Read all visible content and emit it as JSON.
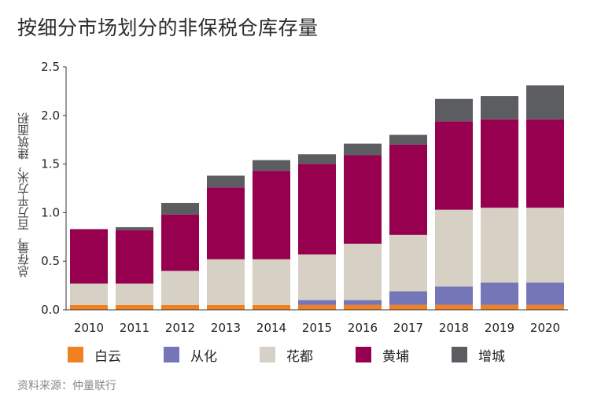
{
  "title": "按细分市场划分的非保税仓库存量",
  "source": "资料来源：仲量联行",
  "chart_data": {
    "type": "bar",
    "stacked": true,
    "ylabel": "总存量，百万平方米，建筑面积",
    "ylim": [
      0,
      2.5
    ],
    "yticks": [
      "0.0",
      "0.5",
      "1.0",
      "1.5",
      "2.0",
      "2.5"
    ],
    "grid": false,
    "legend_position": "bottom",
    "categories": [
      "2010",
      "2011",
      "2012",
      "2013",
      "2014",
      "2015",
      "2016",
      "2017",
      "2018",
      "2019",
      "2020"
    ],
    "series": [
      {
        "name": "白云",
        "color": "#f08020",
        "values": [
          0.05,
          0.05,
          0.05,
          0.05,
          0.05,
          0.05,
          0.05,
          0.05,
          0.05,
          0.05,
          0.05
        ]
      },
      {
        "name": "从化",
        "color": "#7476b8",
        "values": [
          0.0,
          0.0,
          0.0,
          0.0,
          0.0,
          0.05,
          0.05,
          0.14,
          0.19,
          0.23,
          0.23
        ]
      },
      {
        "name": "花都",
        "color": "#d6d1c4",
        "values": [
          0.22,
          0.22,
          0.35,
          0.47,
          0.47,
          0.47,
          0.58,
          0.58,
          0.79,
          0.77,
          0.77
        ]
      },
      {
        "name": "黄埔",
        "color": "#97004f",
        "values": [
          0.56,
          0.55,
          0.58,
          0.74,
          0.91,
          0.93,
          0.91,
          0.93,
          0.91,
          0.91,
          0.91
        ]
      },
      {
        "name": "增城",
        "color": "#5c5d60",
        "values": [
          0.0,
          0.03,
          0.12,
          0.12,
          0.11,
          0.1,
          0.12,
          0.1,
          0.23,
          0.24,
          0.35
        ]
      }
    ]
  }
}
